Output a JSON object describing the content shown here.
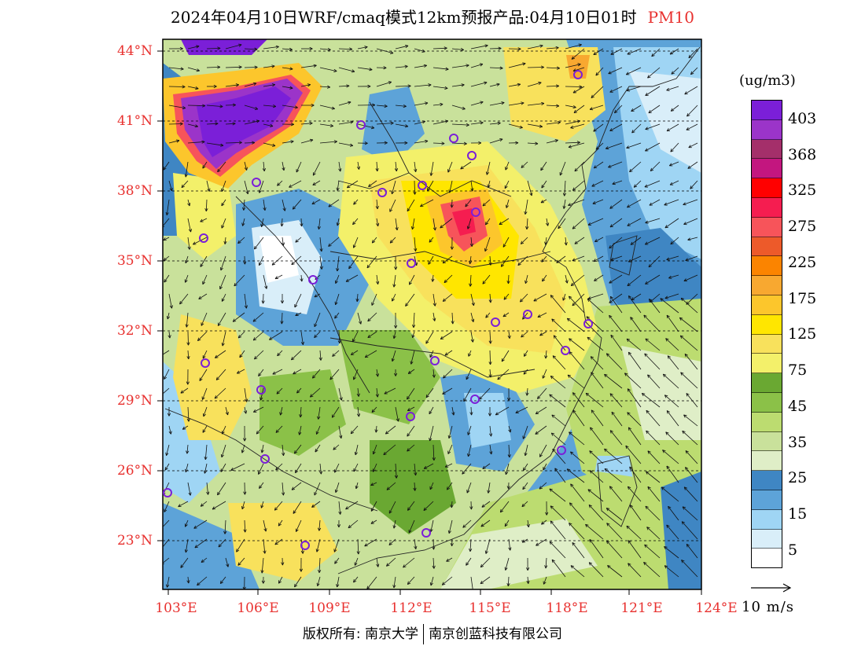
{
  "title": {
    "text": "2024年04月10日WRF/cmaq模式12km预报产品:04月10日01时",
    "pollutant": "PM10"
  },
  "map": {
    "lat_labels": [
      "44°N",
      "41°N",
      "38°N",
      "35°N",
      "32°N",
      "29°N",
      "26°N",
      "23°N"
    ],
    "lon_labels": [
      "103°E",
      "106°E",
      "109°E",
      "112°E",
      "115°E",
      "118°E",
      "121°E",
      "124°E"
    ]
  },
  "colorbar": {
    "units": "(ug/m3)",
    "colors": [
      "#7b1fd8",
      "#9b34c9",
      "#a42f6a",
      "#c3167f",
      "#ff0000",
      "#f51d50",
      "#f7545a",
      "#ed5a2a",
      "#fb8400",
      "#f8a830",
      "#fcc62c",
      "#ffe600",
      "#f8e15c",
      "#f3f06a",
      "#6aa832",
      "#8bc148",
      "#bcdc70",
      "#c9e19b",
      "#dfeec7",
      "#3f86c3",
      "#5da3d8",
      "#9fd5f4",
      "#d9eef9",
      "#ffffff"
    ],
    "labels": [
      "403",
      "368",
      "325",
      "275",
      "225",
      "175",
      "125",
      "75",
      "45",
      "35",
      "25",
      "15",
      "5"
    ]
  },
  "wind_reference": "10 m/s",
  "copyright": {
    "left": "版权所有: 南京大学",
    "right": "南京创蓝科技有限公司"
  },
  "icons": {
    "city_marker": "circle-marker-icon",
    "wind_vector": "arrow-icon"
  }
}
